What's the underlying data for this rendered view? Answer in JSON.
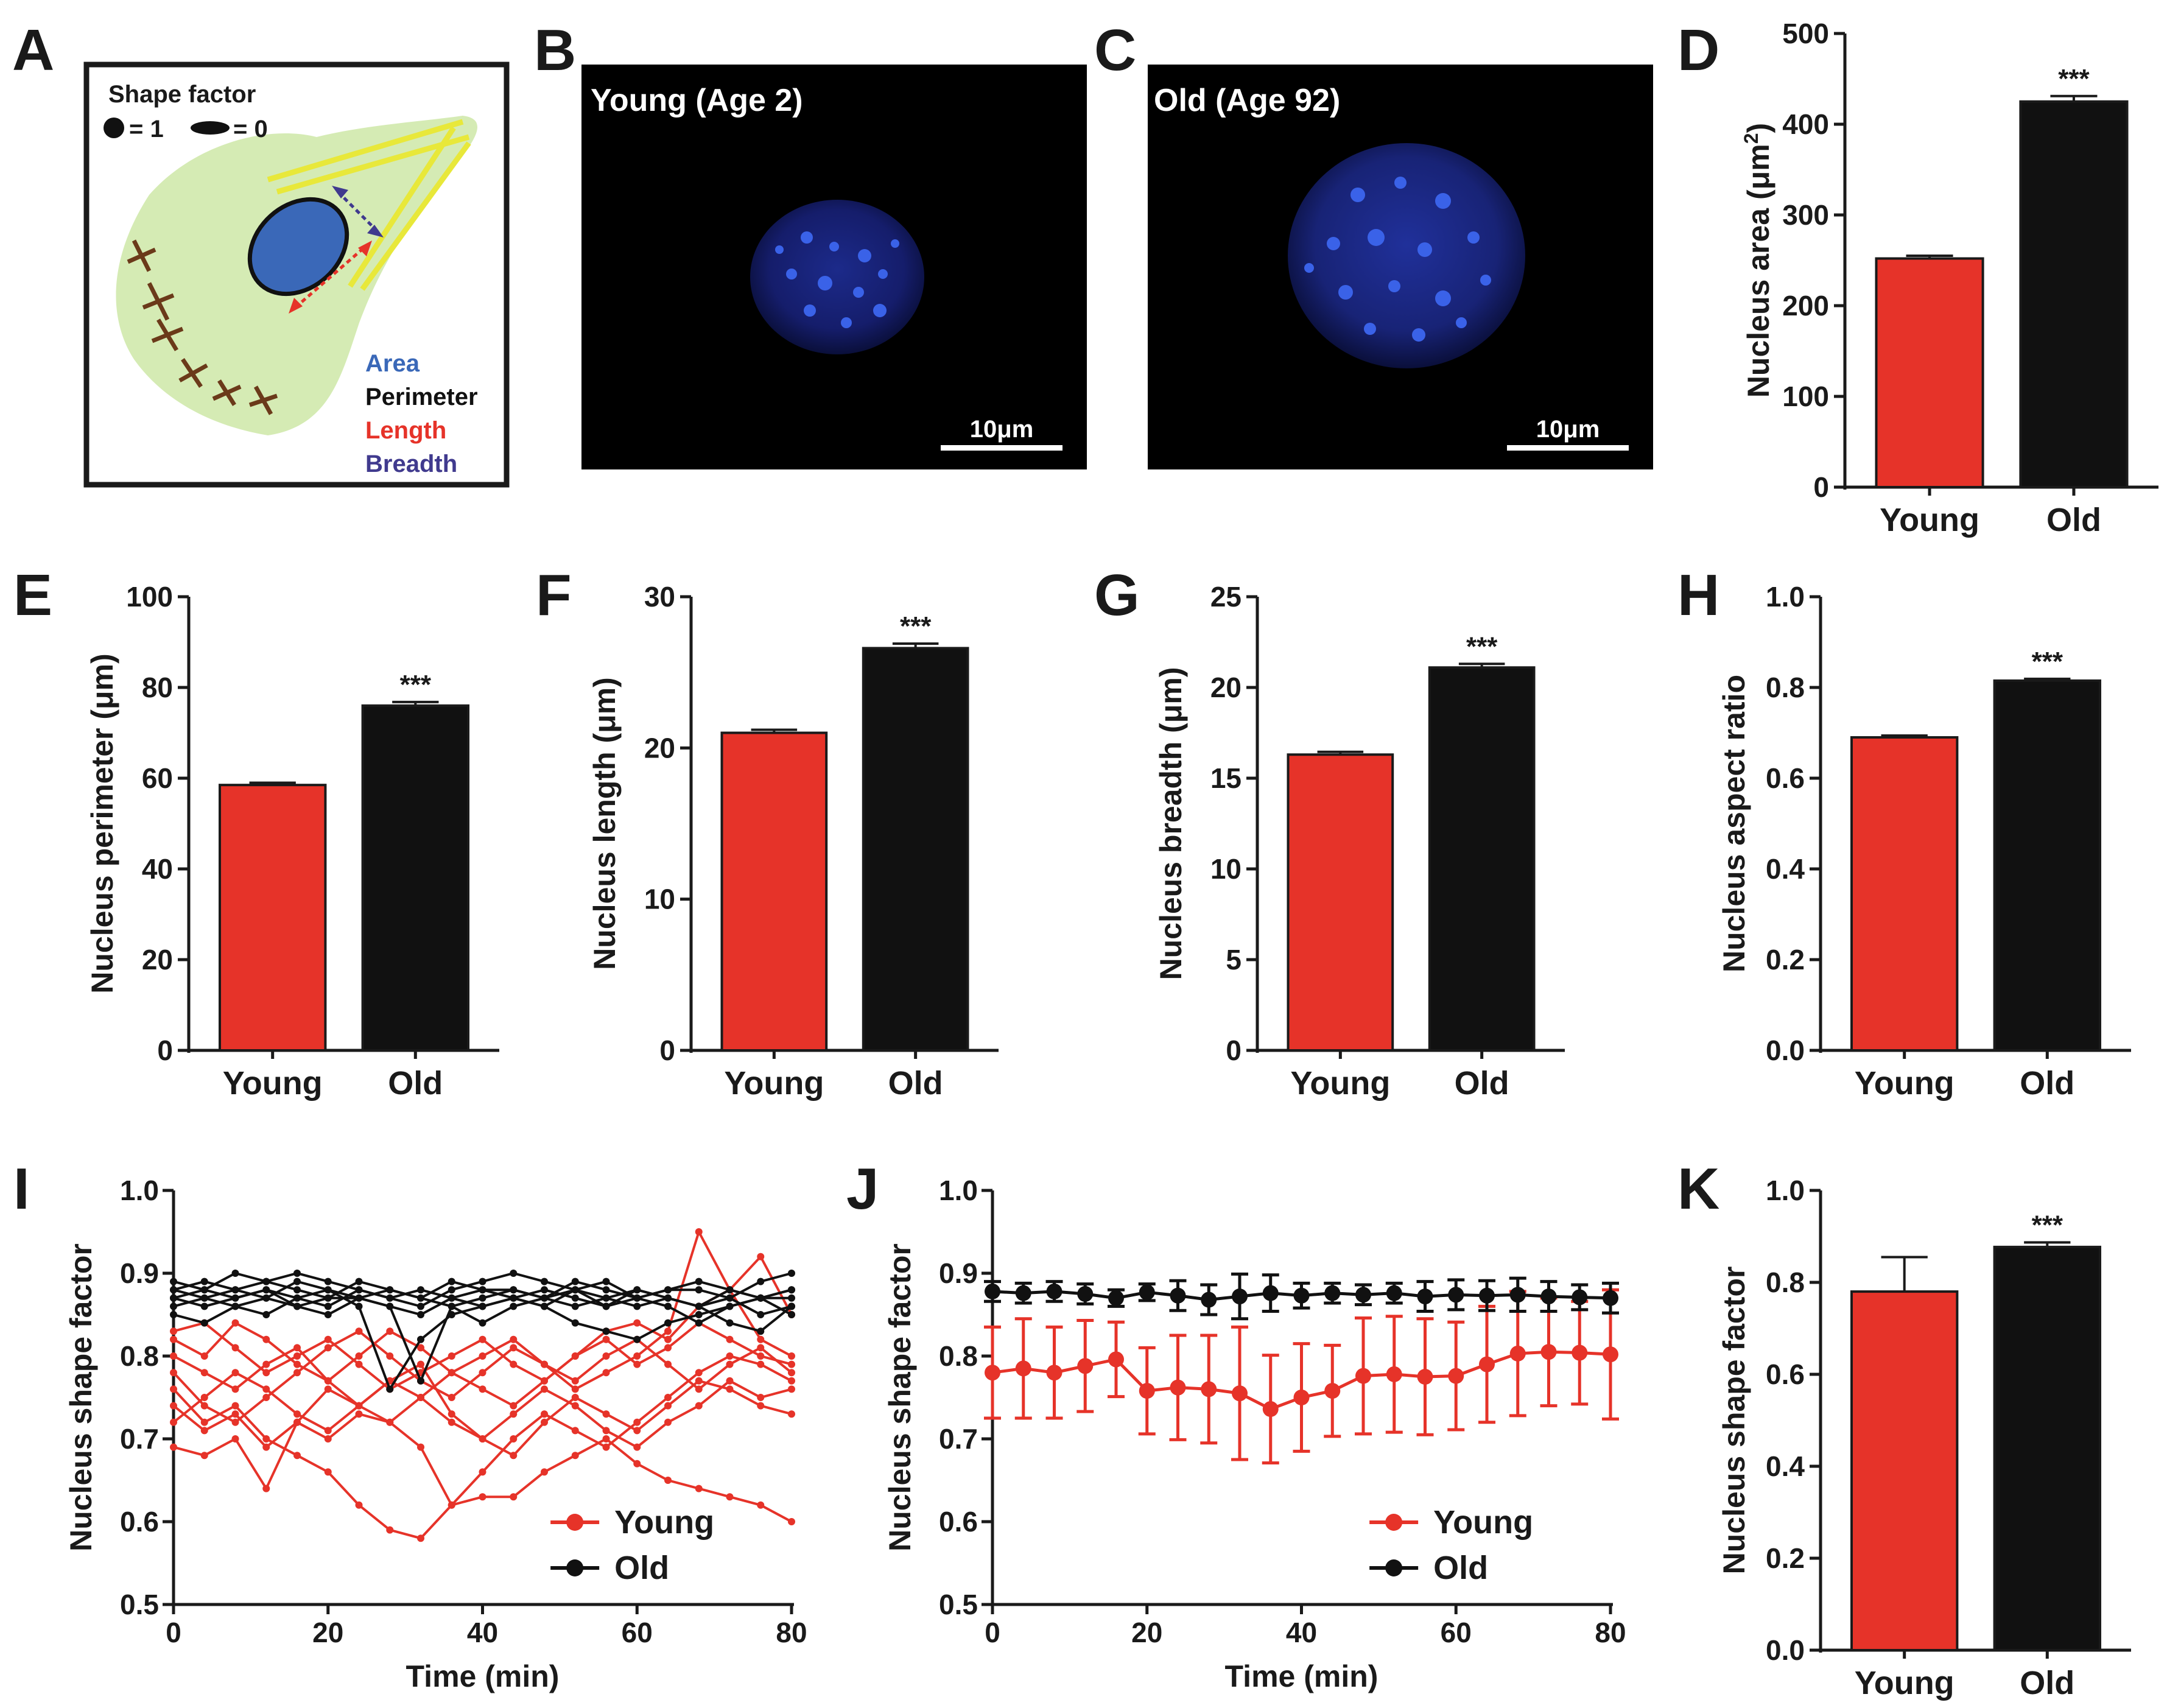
{
  "colors": {
    "young": "#e63329",
    "old": "#111111",
    "cell": "#d5ebb4",
    "nucleus": "#3a68b8",
    "filament": "#e8e83a",
    "length_arrow": "#e63329",
    "breadth_arrow": "#403a8e"
  },
  "panels": {
    "A": {
      "label": "A",
      "shape_factor_title": "Shape factor",
      "round_value": "= 1",
      "elong_value": "= 0",
      "legend": [
        {
          "text": "Area",
          "color": "#3a68b8"
        },
        {
          "text": "Perimeter",
          "color": "#111111"
        },
        {
          "text": "Length",
          "color": "#e63329"
        },
        {
          "text": "Breadth",
          "color": "#403a8e"
        }
      ]
    },
    "B": {
      "label": "B",
      "title": "Young (Age 2)",
      "scale": "10μm"
    },
    "C": {
      "label": "C",
      "title": "Old (Age 92)",
      "scale": "10μm"
    }
  },
  "chart_data": [
    {
      "panel": "D",
      "type": "bar",
      "categories": [
        "Young",
        "Old"
      ],
      "values": [
        252,
        425
      ],
      "errors": [
        3,
        6
      ],
      "ylim": [
        0,
        500
      ],
      "yticks": [
        "0",
        "100",
        "200",
        "300",
        "400",
        "500"
      ],
      "ylabel_main": "Nucleus area (μm",
      "ylabel_sup": "2",
      "ylabel_end": ")",
      "significance": "***"
    },
    {
      "panel": "E",
      "type": "bar",
      "categories": [
        "Young",
        "Old"
      ],
      "values": [
        58.5,
        76
      ],
      "errors": [
        0.5,
        0.8
      ],
      "ylim": [
        0,
        100
      ],
      "yticks": [
        "0",
        "20",
        "40",
        "60",
        "80",
        "100"
      ],
      "ylabel": "Nucleus perimeter (μm)",
      "significance": "***"
    },
    {
      "panel": "F",
      "type": "bar",
      "categories": [
        "Young",
        "Old"
      ],
      "values": [
        21,
        26.6
      ],
      "errors": [
        0.2,
        0.3
      ],
      "ylim": [
        0,
        30
      ],
      "yticks": [
        "0",
        "10",
        "20",
        "30"
      ],
      "ylabel": "Nucleus length (μm)",
      "significance": "***"
    },
    {
      "panel": "G",
      "type": "bar",
      "categories": [
        "Young",
        "Old"
      ],
      "values": [
        16.3,
        21.1
      ],
      "errors": [
        0.15,
        0.2
      ],
      "ylim": [
        0,
        25
      ],
      "yticks": [
        "0",
        "5",
        "10",
        "15",
        "20",
        "25"
      ],
      "ylabel": "Nucleus breadth (μm)",
      "significance": "***"
    },
    {
      "panel": "H",
      "type": "bar",
      "categories": [
        "Young",
        "Old"
      ],
      "values": [
        0.69,
        0.815
      ],
      "errors": [
        0.004,
        0.004
      ],
      "ylim": [
        0,
        1
      ],
      "yticks": [
        "0.0",
        "0.2",
        "0.4",
        "0.6",
        "0.8",
        "1.0"
      ],
      "ylabel": "Nucleus aspect ratio",
      "significance": "***"
    },
    {
      "panel": "I",
      "type": "line",
      "title": "",
      "xlabel": "Time (min)",
      "ylabel": "Nucleus shape factor",
      "xlim": [
        0,
        80
      ],
      "ylim": [
        0.5,
        1.0
      ],
      "xticks": [
        "0",
        "20",
        "40",
        "60",
        "80"
      ],
      "yticks": [
        "0.5",
        "0.6",
        "0.7",
        "0.8",
        "0.9",
        "1.0"
      ],
      "x": [
        0,
        4,
        8,
        12,
        16,
        20,
        24,
        28,
        32,
        36,
        40,
        44,
        48,
        52,
        56,
        60,
        64,
        68,
        72,
        76,
        80
      ],
      "legend": [
        "Young",
        "Old"
      ],
      "series": [
        {
          "name": "Young",
          "values": [
            0.83,
            0.84,
            0.81,
            0.78,
            0.8,
            0.82,
            0.79,
            0.76,
            0.78,
            0.8,
            0.82,
            0.79,
            0.77,
            0.8,
            0.83,
            0.84,
            0.82,
            0.86,
            0.88,
            0.92,
            0.85
          ]
        },
        {
          "name": "Young",
          "values": [
            0.8,
            0.78,
            0.76,
            0.79,
            0.81,
            0.77,
            0.74,
            0.72,
            0.75,
            0.78,
            0.8,
            0.82,
            0.79,
            0.76,
            0.78,
            0.8,
            0.83,
            0.95,
            0.88,
            0.82,
            0.8
          ]
        },
        {
          "name": "Young",
          "values": [
            0.78,
            0.74,
            0.72,
            0.75,
            0.78,
            0.81,
            0.83,
            0.8,
            0.77,
            0.75,
            0.78,
            0.81,
            0.79,
            0.77,
            0.8,
            0.82,
            0.79,
            0.76,
            0.79,
            0.81,
            0.78
          ]
        },
        {
          "name": "Young",
          "values": [
            0.76,
            0.72,
            0.74,
            0.7,
            0.68,
            0.66,
            0.62,
            0.59,
            0.58,
            0.62,
            0.66,
            0.7,
            0.73,
            0.71,
            0.69,
            0.72,
            0.75,
            0.78,
            0.8,
            0.79,
            0.77
          ]
        },
        {
          "name": "Young",
          "values": [
            0.74,
            0.71,
            0.73,
            0.69,
            0.72,
            0.7,
            0.73,
            0.72,
            0.69,
            0.62,
            0.63,
            0.63,
            0.66,
            0.68,
            0.7,
            0.67,
            0.65,
            0.64,
            0.63,
            0.62,
            0.6
          ]
        },
        {
          "name": "Young",
          "values": [
            0.69,
            0.68,
            0.7,
            0.64,
            0.72,
            0.76,
            0.74,
            0.77,
            0.79,
            0.73,
            0.7,
            0.68,
            0.72,
            0.75,
            0.73,
            0.71,
            0.74,
            0.77,
            0.76,
            0.74,
            0.73
          ]
        },
        {
          "name": "Young",
          "values": [
            0.82,
            0.8,
            0.84,
            0.82,
            0.79,
            0.77,
            0.8,
            0.83,
            0.81,
            0.78,
            0.76,
            0.74,
            0.77,
            0.8,
            0.82,
            0.79,
            0.81,
            0.84,
            0.82,
            0.8,
            0.79
          ]
        },
        {
          "name": "Young",
          "values": [
            0.72,
            0.75,
            0.78,
            0.76,
            0.73,
            0.71,
            0.74,
            0.77,
            0.75,
            0.72,
            0.7,
            0.73,
            0.76,
            0.74,
            0.71,
            0.69,
            0.72,
            0.74,
            0.77,
            0.75,
            0.76
          ]
        },
        {
          "name": "Old",
          "values": [
            0.88,
            0.89,
            0.88,
            0.89,
            0.88,
            0.87,
            0.89,
            0.88,
            0.87,
            0.89,
            0.88,
            0.88,
            0.87,
            0.89,
            0.88,
            0.87,
            0.88,
            0.89,
            0.88,
            0.87,
            0.88
          ]
        },
        {
          "name": "Old",
          "values": [
            0.87,
            0.86,
            0.87,
            0.88,
            0.86,
            0.87,
            0.87,
            0.86,
            0.85,
            0.87,
            0.86,
            0.87,
            0.86,
            0.88,
            0.87,
            0.86,
            0.87,
            0.86,
            0.87,
            0.85,
            0.86
          ]
        },
        {
          "name": "Old",
          "values": [
            0.89,
            0.88,
            0.9,
            0.89,
            0.9,
            0.89,
            0.88,
            0.87,
            0.86,
            0.88,
            0.89,
            0.9,
            0.89,
            0.88,
            0.89,
            0.87,
            0.88,
            0.88,
            0.87,
            0.89,
            0.9
          ]
        },
        {
          "name": "Old",
          "values": [
            0.86,
            0.87,
            0.86,
            0.85,
            0.87,
            0.88,
            0.86,
            0.76,
            0.82,
            0.85,
            0.86,
            0.87,
            0.86,
            0.84,
            0.83,
            0.82,
            0.84,
            0.85,
            0.86,
            0.87,
            0.85
          ]
        },
        {
          "name": "Old",
          "values": [
            0.88,
            0.87,
            0.88,
            0.87,
            0.89,
            0.88,
            0.87,
            0.86,
            0.77,
            0.86,
            0.87,
            0.88,
            0.87,
            0.88,
            0.86,
            0.87,
            0.86,
            0.84,
            0.86,
            0.87,
            0.88
          ]
        },
        {
          "name": "Old",
          "values": [
            0.85,
            0.84,
            0.86,
            0.87,
            0.86,
            0.85,
            0.87,
            0.88,
            0.87,
            0.86,
            0.84,
            0.86,
            0.87,
            0.86,
            0.87,
            0.88,
            0.87,
            0.86,
            0.84,
            0.83,
            0.86
          ]
        },
        {
          "name": "Old",
          "values": [
            0.87,
            0.88,
            0.87,
            0.88,
            0.87,
            0.86,
            0.88,
            0.87,
            0.88,
            0.87,
            0.88,
            0.87,
            0.88,
            0.87,
            0.86,
            0.88,
            0.87,
            0.86,
            0.88,
            0.87,
            0.87
          ]
        }
      ]
    },
    {
      "panel": "J",
      "type": "line",
      "xlabel": "Time (min)",
      "ylabel": "Nucleus shape factor",
      "xlim": [
        0,
        80
      ],
      "ylim": [
        0.5,
        1.0
      ],
      "xticks": [
        "0",
        "20",
        "40",
        "60",
        "80"
      ],
      "yticks": [
        "0.5",
        "0.6",
        "0.7",
        "0.8",
        "0.9",
        "1.0"
      ],
      "x": [
        0,
        4,
        8,
        12,
        16,
        20,
        24,
        28,
        32,
        36,
        40,
        44,
        48,
        52,
        56,
        60,
        64,
        68,
        72,
        76,
        80
      ],
      "legend": [
        "Young",
        "Old"
      ],
      "series": [
        {
          "name": "Young",
          "values": [
            0.78,
            0.785,
            0.78,
            0.788,
            0.796,
            0.758,
            0.762,
            0.76,
            0.755,
            0.736,
            0.75,
            0.758,
            0.776,
            0.778,
            0.775,
            0.776,
            0.79,
            0.803,
            0.805,
            0.804,
            0.802
          ],
          "errors": [
            0.055,
            0.06,
            0.055,
            0.055,
            0.045,
            0.052,
            0.063,
            0.065,
            0.08,
            0.065,
            0.065,
            0.055,
            0.07,
            0.07,
            0.07,
            0.065,
            0.07,
            0.075,
            0.065,
            0.062,
            0.078
          ]
        },
        {
          "name": "Old",
          "values": [
            0.878,
            0.876,
            0.878,
            0.875,
            0.87,
            0.877,
            0.873,
            0.868,
            0.872,
            0.876,
            0.873,
            0.876,
            0.874,
            0.876,
            0.872,
            0.874,
            0.873,
            0.874,
            0.872,
            0.871,
            0.87
          ],
          "errors": [
            0.012,
            0.012,
            0.012,
            0.012,
            0.01,
            0.01,
            0.018,
            0.018,
            0.027,
            0.022,
            0.015,
            0.012,
            0.012,
            0.012,
            0.018,
            0.018,
            0.018,
            0.02,
            0.018,
            0.015,
            0.018
          ]
        }
      ]
    },
    {
      "panel": "K",
      "type": "bar",
      "categories": [
        "Young",
        "Old"
      ],
      "values": [
        0.78,
        0.877
      ],
      "errors": [
        0.075,
        0.01
      ],
      "ylim": [
        0,
        1
      ],
      "yticks": [
        "0.0",
        "0.2",
        "0.4",
        "0.6",
        "0.8",
        "1.0"
      ],
      "ylabel": "Nucleus shape factor",
      "significance": "***"
    }
  ]
}
